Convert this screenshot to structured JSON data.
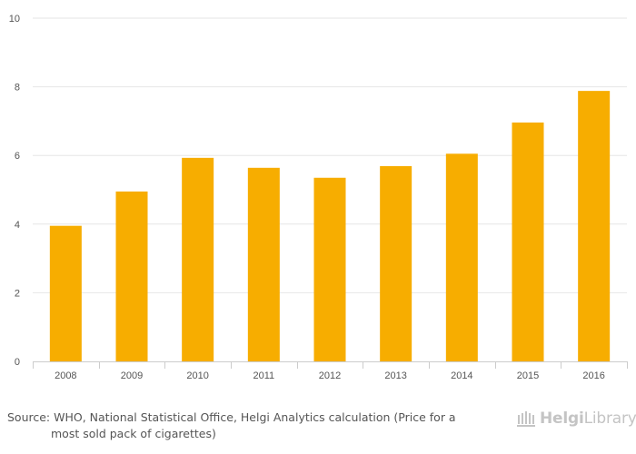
{
  "chart_data": {
    "type": "bar",
    "categories": [
      "2008",
      "2009",
      "2010",
      "2011",
      "2012",
      "2013",
      "2014",
      "2015",
      "2016"
    ],
    "values": [
      3.95,
      4.95,
      5.93,
      5.64,
      5.35,
      5.69,
      6.05,
      6.96,
      7.88
    ],
    "title": "",
    "xlabel": "",
    "ylabel": "",
    "ylim": [
      0,
      10
    ],
    "yticks": [
      "0",
      "2",
      "4",
      "6",
      "8",
      "10"
    ],
    "grid": true,
    "bar_color": "#f7ad00",
    "grid_color": "#e6e6e6"
  },
  "footer": {
    "source_line1": "Source: WHO, National Statistical Office, Helgi Analytics calculation (Price for a",
    "source_line2": "most sold pack of cigarettes)",
    "brand_icon": "library-columns-icon",
    "brand_name_bold": "Helgi",
    "brand_name_rest": "Library."
  }
}
